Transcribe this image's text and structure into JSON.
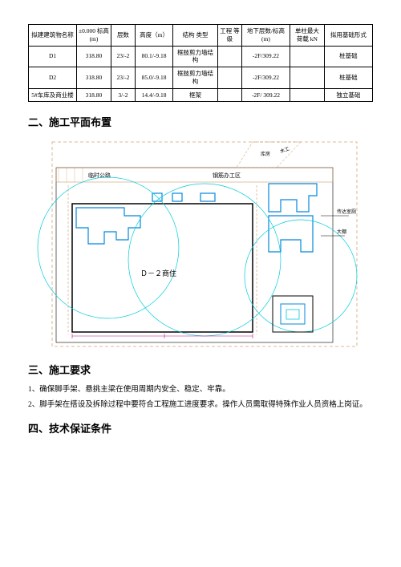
{
  "table": {
    "headers": [
      "拟建建筑物名称",
      "±0.000\n标高(m)",
      "层数",
      "高度（m）",
      "结构\n类型",
      "工程\n等级",
      "地下层数/标高(m)",
      "单柱最大\n荷载 kN",
      "拟用基础形式"
    ],
    "rows": [
      [
        "D1",
        "318.80",
        "23/-2",
        "80.1/-9.18",
        "框肢剪力墙结构",
        "",
        "-2F/309.22",
        "",
        "桩基础"
      ],
      [
        "D2",
        "318.80",
        "23/-2",
        "85.0/-9.18",
        "框肢剪力墙结构",
        "",
        "-2F/309.22",
        "",
        "桩基础"
      ],
      [
        "5#车库及商业楼",
        "318.80",
        "3/-2",
        "14.4/-9.18",
        "框架",
        "",
        "-2F/ 309.22",
        "",
        "独立基础"
      ]
    ],
    "col_widths": [
      "14%",
      "10%",
      "7%",
      "11%",
      "13%",
      "7%",
      "14%",
      "10%",
      "14%"
    ]
  },
  "sections": {
    "s2": "二、施工平面布置",
    "s3": "三、施工要求",
    "s4": "四、技术保证条件"
  },
  "requirements": [
    "1、确保脚手架、悬挑主梁在使用周期内安全、稳定、牢靠。",
    "2、脚手架在搭设及拆除过程中要符合工程施工进度要求。操作人员需取得特殊作业人员资格上岗证。"
  ],
  "diagram": {
    "outer_border": "#d4a574",
    "dashed_border": "#c08850",
    "inner_line": "#000000",
    "blue_line": "#0088dd",
    "cyan_line": "#00ccdd",
    "magenta": "#cc0088",
    "bg": "#ffffff",
    "labels": {
      "top_road": "临时公路",
      "office": "钢筋办工区",
      "ku": "库房",
      "mu": "木工",
      "building": "Ｄ－２商住",
      "right1": "传达室厕",
      "right2": "大棚"
    }
  }
}
